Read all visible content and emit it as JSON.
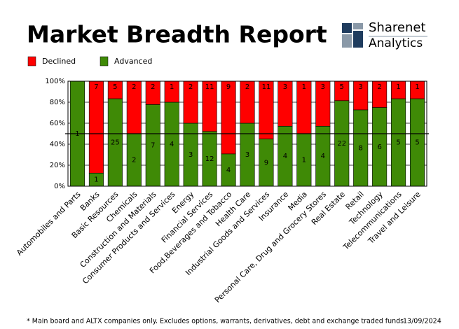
{
  "header": {
    "title": "Market Breadth Report",
    "logo_top": "Sharenet",
    "logo_bottom": "Analytics"
  },
  "chart_data": {
    "type": "bar_percent_stacked",
    "categories": [
      "Automobiles and Parts",
      "Banks",
      "Basic Resources",
      "Chemicals",
      "Construction and Materials",
      "Consumer Products and Services",
      "Energy",
      "Financial Services",
      "Food,Beverages and Tobacco",
      "Health Care",
      "Industrial Goods and Services",
      "Insurance",
      "Media",
      "Personal Care, Drug and Grocery Stores",
      "Real Estate",
      "Retail",
      "Technology",
      "Telecommunications",
      "Travel and Leisure"
    ],
    "series": [
      {
        "name": "Declined",
        "color": "#ff0000",
        "values": [
          0,
          7,
          5,
          2,
          2,
          1,
          2,
          11,
          9,
          2,
          11,
          3,
          1,
          3,
          5,
          3,
          2,
          1,
          1
        ]
      },
      {
        "name": "Advanced",
        "color": "#3f8a06",
        "values": [
          1,
          1,
          25,
          2,
          7,
          4,
          3,
          12,
          4,
          3,
          9,
          4,
          1,
          4,
          22,
          8,
          6,
          5,
          5
        ]
      }
    ],
    "ylim": [
      0,
      100
    ],
    "yticks": [
      {
        "value": 0,
        "label": "0%"
      },
      {
        "value": 20,
        "label": "20%"
      },
      {
        "value": 40,
        "label": "40%"
      },
      {
        "value": 60,
        "label": "60%"
      },
      {
        "value": 80,
        "label": "80%"
      },
      {
        "value": 100,
        "label": "100%"
      }
    ],
    "grid": true,
    "reference_line": 50,
    "legend": "top-left"
  },
  "footer": {
    "note": "* Main board and ALTX companies only. Excludes options, warrants, derivatives, debt and exchange traded funds",
    "date": "13/09/2024"
  }
}
